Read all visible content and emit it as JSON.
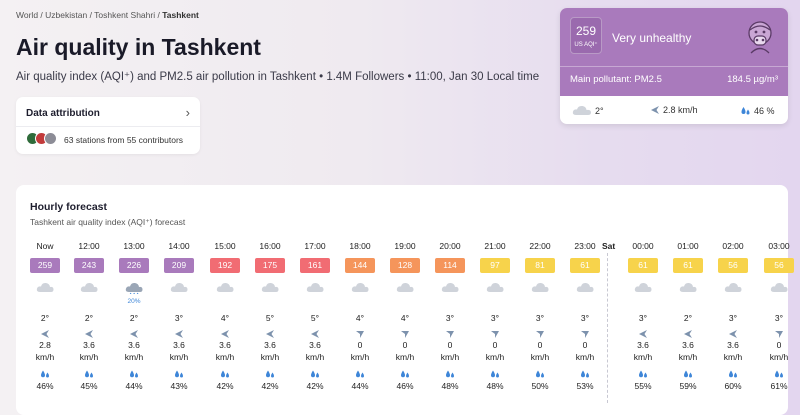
{
  "breadcrumb": [
    "World",
    "Uzbekistan",
    "Toshkent Shahri",
    "Tashkent"
  ],
  "page": {
    "title": "Air quality in Tashkent",
    "subtitle": "Air quality index (AQI⁺) and PM2.5 air pollution in Tashkent • 1.4M Followers • 11:00, Jan 30 Local time"
  },
  "attribution": {
    "title": "Data attribution",
    "text": "63 stations from 55 contributors"
  },
  "current": {
    "aqi": "259",
    "aqi_unit": "US AQI⁺",
    "level": "Very unhealthy",
    "pollutant_label": "Main pollutant: PM2.5",
    "concentration": "184.5 µg/m³",
    "temp": "2°",
    "wind": "2.8 km/h",
    "humidity": "46 %",
    "color": "#a97abc"
  },
  "forecast": {
    "title": "Hourly forecast",
    "subtitle": "Tashkent air quality index (AQI⁺) forecast",
    "day_label": "Sat",
    "wind_unit": "km/h",
    "hours": [
      {
        "time": "Now",
        "aqi": "259",
        "color": "#a97abc",
        "precip": "",
        "temp": "2°",
        "wind": "2.8",
        "hum": "46%"
      },
      {
        "time": "12:00",
        "aqi": "243",
        "color": "#a97abc",
        "precip": "",
        "temp": "2°",
        "wind": "3.6",
        "hum": "45%"
      },
      {
        "time": "13:00",
        "aqi": "226",
        "color": "#a97abc",
        "precip": "20%",
        "temp": "2°",
        "wind": "3.6",
        "hum": "44%"
      },
      {
        "time": "14:00",
        "aqi": "209",
        "color": "#a97abc",
        "precip": "",
        "temp": "3°",
        "wind": "3.6",
        "hum": "43%"
      },
      {
        "time": "15:00",
        "aqi": "192",
        "color": "#f16c73",
        "precip": "",
        "temp": "4°",
        "wind": "3.6",
        "hum": "42%"
      },
      {
        "time": "16:00",
        "aqi": "175",
        "color": "#f16c73",
        "precip": "",
        "temp": "5°",
        "wind": "3.6",
        "hum": "42%"
      },
      {
        "time": "17:00",
        "aqi": "161",
        "color": "#f16c73",
        "precip": "",
        "temp": "5°",
        "wind": "3.6",
        "hum": "42%"
      },
      {
        "time": "18:00",
        "aqi": "144",
        "color": "#f5955b",
        "precip": "",
        "temp": "4°",
        "wind": "0",
        "hum": "44%"
      },
      {
        "time": "19:00",
        "aqi": "128",
        "color": "#f5955b",
        "precip": "",
        "temp": "4°",
        "wind": "0",
        "hum": "46%"
      },
      {
        "time": "20:00",
        "aqi": "114",
        "color": "#f5955b",
        "precip": "",
        "temp": "3°",
        "wind": "0",
        "hum": "48%"
      },
      {
        "time": "21:00",
        "aqi": "97",
        "color": "#f7d34b",
        "precip": "",
        "temp": "3°",
        "wind": "0",
        "hum": "48%"
      },
      {
        "time": "22:00",
        "aqi": "81",
        "color": "#f7d34b",
        "precip": "",
        "temp": "3°",
        "wind": "0",
        "hum": "50%"
      },
      {
        "time": "23:00",
        "aqi": "61",
        "color": "#f7d34b",
        "precip": "",
        "temp": "3°",
        "wind": "0",
        "hum": "53%"
      },
      {
        "time": "00:00",
        "aqi": "61",
        "color": "#f7d34b",
        "precip": "",
        "temp": "3°",
        "wind": "3.6",
        "hum": "55%"
      },
      {
        "time": "01:00",
        "aqi": "61",
        "color": "#f7d34b",
        "precip": "",
        "temp": "2°",
        "wind": "3.6",
        "hum": "59%"
      },
      {
        "time": "02:00",
        "aqi": "56",
        "color": "#f7d34b",
        "precip": "",
        "temp": "3°",
        "wind": "3.6",
        "hum": "60%"
      },
      {
        "time": "03:00",
        "aqi": "56",
        "color": "#f7d34b",
        "precip": "",
        "temp": "3°",
        "wind": "0",
        "hum": "61%"
      }
    ]
  }
}
